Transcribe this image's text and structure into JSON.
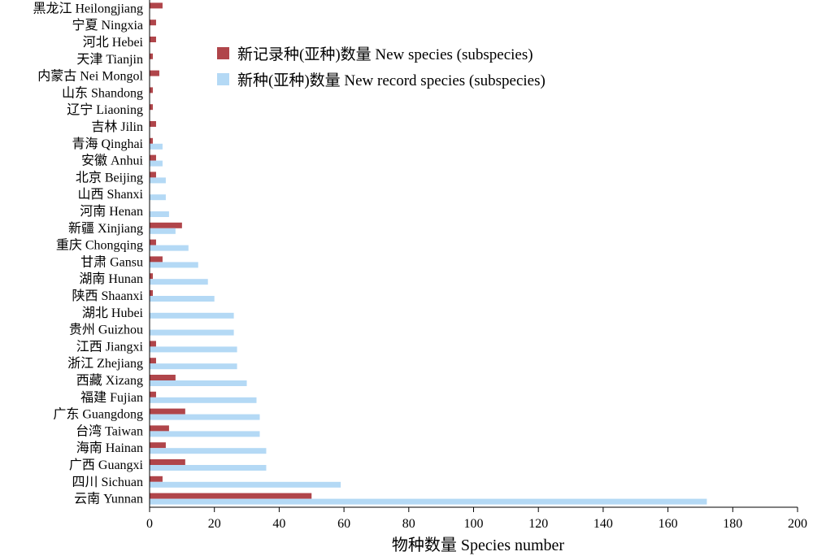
{
  "chart_data": {
    "type": "bar",
    "orientation": "horizontal",
    "categories": [
      "黑龙江 Heilongjiang",
      "宁夏 Ningxia",
      "河北 Hebei",
      "天津 Tianjin",
      "内蒙古 Nei Mongol",
      "山东 Shandong",
      "辽宁 Liaoning",
      "吉林 Jilin",
      "青海 Qinghai",
      "安徽 Anhui",
      "北京 Beijing",
      "山西 Shanxi",
      "河南 Henan",
      "新疆 Xinjiang",
      "重庆 Chongqing",
      "甘肃 Gansu",
      "湖南 Hunan",
      "陕西 Shaanxi",
      "湖北 Hubei",
      "贵州 Guizhou",
      "江西 Jiangxi",
      "浙江 Zhejiang",
      "西藏 Xizang",
      "福建 Fujian",
      "广东 Guangdong",
      "台湾 Taiwan",
      "海南 Hainan",
      "广西 Guangxi",
      "四川 Sichuan",
      "云南 Yunnan"
    ],
    "series": [
      {
        "name": "新记录种(亚种)数量 New species (subspecies)",
        "color": "#b0454a",
        "values": [
          4,
          2,
          2,
          1,
          3,
          1,
          1,
          2,
          1,
          2,
          2,
          0,
          0,
          10,
          2,
          4,
          1,
          1,
          0,
          0,
          2,
          2,
          8,
          2,
          11,
          6,
          5,
          11,
          4,
          50
        ]
      },
      {
        "name": "新种(亚种)数量 New record species (subspecies)",
        "color": "#b4d9f5",
        "values": [
          0,
          0,
          0,
          0,
          0,
          0,
          0,
          0,
          4,
          4,
          5,
          5,
          6,
          8,
          12,
          15,
          18,
          20,
          26,
          26,
          27,
          27,
          30,
          33,
          34,
          34,
          36,
          36,
          59,
          172
        ]
      }
    ],
    "xlabel": "物种数量 Species number",
    "ylabel": "",
    "xlim": [
      0,
      200
    ],
    "xticks": [
      "0",
      "20",
      "40",
      "60",
      "80",
      "100",
      "120",
      "140",
      "160",
      "180",
      "200"
    ],
    "legend_position": "top-center",
    "grid": false
  }
}
